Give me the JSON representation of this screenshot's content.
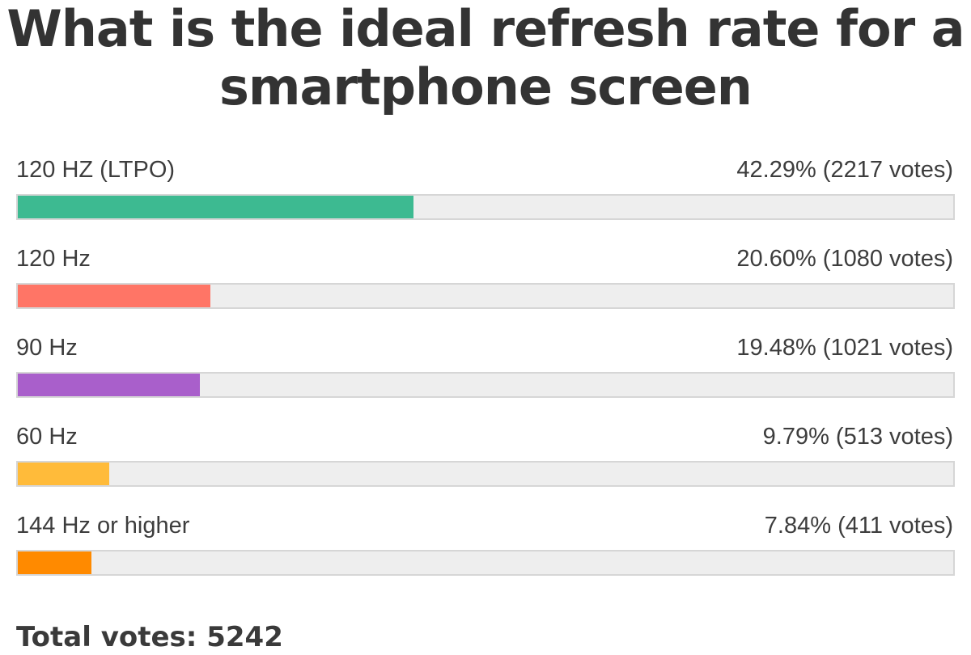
{
  "chart_data": {
    "type": "bar",
    "title": "What is the ideal refresh rate for a smartphone screen",
    "orientation": "horizontal",
    "categories": [
      "120 HZ (LTPO)",
      "120 Hz",
      "90 Hz",
      "60 Hz",
      "144 Hz or higher"
    ],
    "values": [
      42.29,
      20.6,
      19.48,
      9.79,
      7.84
    ],
    "votes": [
      2217,
      1080,
      1021,
      513,
      411
    ],
    "result_labels": [
      "42.29% (2217 votes)",
      "20.60% (1080 votes)",
      "19.48% (1021 votes)",
      "9.79% (513 votes)",
      "7.84% (411 votes)"
    ],
    "colors": [
      "#3dba91",
      "#ff7566",
      "#a95fcb",
      "#ffbb3a",
      "#ff8a00"
    ],
    "xlim": [
      0,
      100
    ],
    "total_label": "Total votes: 5242"
  }
}
